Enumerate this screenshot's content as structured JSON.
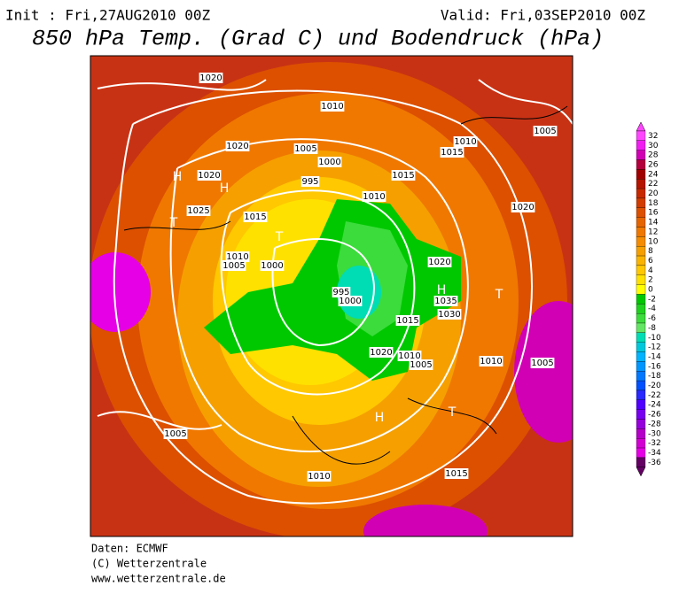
{
  "header": {
    "init": "Init : Fri,27AUG2010 00Z",
    "valid": "Valid: Fri,03SEP2010 00Z",
    "title": "850 hPa Temp. (Grad C) und Bodendruck (hPa)"
  },
  "colorbar": {
    "labels": [
      32,
      30,
      28,
      26,
      24,
      22,
      20,
      18,
      16,
      14,
      12,
      10,
      8,
      6,
      4,
      2,
      0,
      -2,
      -4,
      -6,
      -8,
      -10,
      -12,
      -14,
      -16,
      -18,
      -20,
      -22,
      -24,
      -26,
      -28,
      -30,
      -32,
      -34,
      -36
    ],
    "colors": [
      "#ff46ff",
      "#f01ef0",
      "#d200b4",
      "#b4003c",
      "#a00000",
      "#b41400",
      "#c82800",
      "#d23c00",
      "#dc5000",
      "#e66400",
      "#f07800",
      "#f58c00",
      "#f5a000",
      "#fab400",
      "#ffc800",
      "#ffe100",
      "#ffff00",
      "#00c800",
      "#1ed21e",
      "#3cdc3c",
      "#64e664",
      "#00dcb4",
      "#00c8dc",
      "#00b4ff",
      "#0096ff",
      "#0078ff",
      "#0050ff",
      "#2828ff",
      "#5000ff",
      "#7800f0",
      "#9600dc",
      "#b400c8",
      "#d200d2",
      "#e600e6",
      "#640064"
    ]
  },
  "map": {
    "labels": [
      "1020",
      "1020",
      "1010",
      "1005",
      "1000",
      "995",
      "1010",
      "1015",
      "1015",
      "1010",
      "1005",
      "H",
      "H",
      "T",
      "T",
      "1020",
      "1025",
      "1015",
      "1010",
      "1005",
      "1000",
      "1030",
      "1035",
      "1020",
      "H",
      "T",
      "1010",
      "1005",
      "1000",
      "995",
      "1020",
      "1010",
      "1015",
      "1005",
      "H",
      "T",
      "1010",
      "1015",
      "1020",
      "1005"
    ]
  },
  "footer": {
    "data": "Daten: ECMWF",
    "copyright": "(C) Wetterzentrale",
    "url": "www.wetterzentrale.de"
  }
}
